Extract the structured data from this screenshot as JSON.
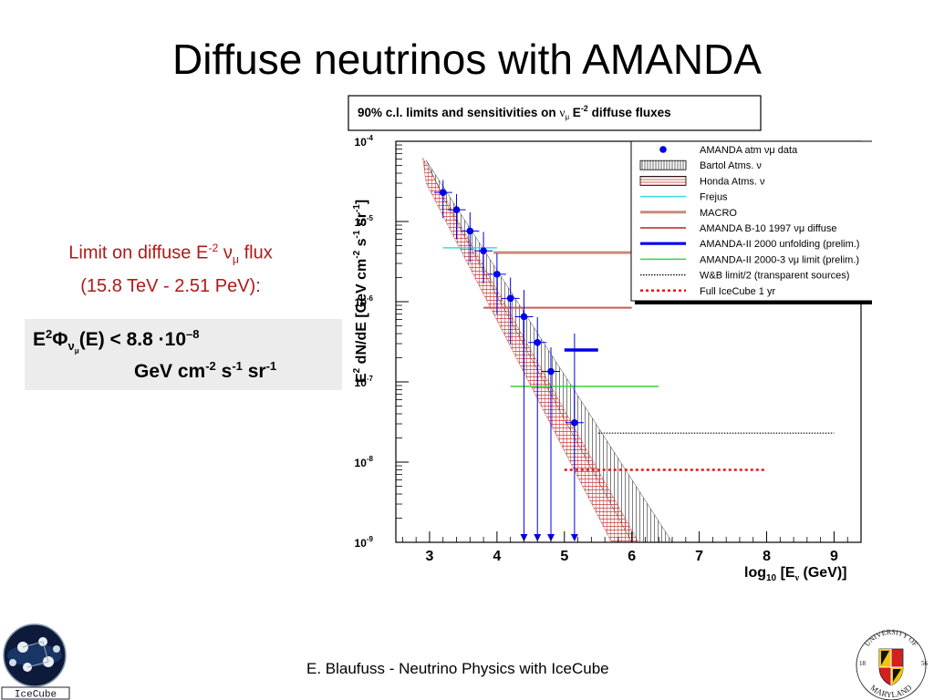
{
  "slide": {
    "title": "Diffuse neutrinos with AMANDA",
    "limit_line1_prefix": "Limit on diffuse E",
    "limit_line1_exp": "-2",
    "limit_line1_nu": "ν",
    "limit_line1_mu": "μ",
    "limit_line1_suffix": " flux",
    "limit_line2": "(15.8 TeV - 2.51 PeV):",
    "formula": {
      "e": "E",
      "e_exp": "2",
      "phi": "Φ",
      "nu": "ν",
      "mu": "μ",
      "arg": "(E) <  8.8",
      "dot": "·",
      "ten": "10",
      "ten_exp": "–8",
      "unit_gev": "GeV cm",
      "unit_cm_exp": "-2",
      "unit_s": " s",
      "unit_s_exp": "-1",
      "unit_sr": " sr",
      "unit_sr_exp": "-1"
    },
    "footer": "E. Blaufuss - Neutrino Physics with IceCube",
    "logos": {
      "icecube_text": "IceCube",
      "umd_top": "UNIVERSITY OF",
      "umd_bottom": "MARYLAND",
      "umd_18": "18",
      "umd_56": "56"
    }
  },
  "chart_data": {
    "type": "line",
    "title_prefix": "90% c.l. limits and sensitivities on ",
    "title_nu": "ν",
    "title_mu": "μ",
    "title_e": " E",
    "title_exp": "-2",
    "title_suffix": " diffuse fluxes",
    "ylabel_prefix": "E",
    "ylabel_exp2": "2",
    "ylabel_body": " dN/dE [GeV cm",
    "ylabel_exp_cm": "-2",
    "ylabel_s": " s",
    "ylabel_exp_s": "-1",
    "ylabel_sr": " sr",
    "ylabel_exp_sr": "-1",
    "ylabel_close": "]",
    "xlabel_log": "log",
    "xlabel_sub": "10",
    "xlabel_body": " [E",
    "xlabel_nu": "ν",
    "xlabel_close": " (GeV)]",
    "xlim": [
      2.5,
      9.4
    ],
    "ylim_log10": [
      -9,
      -4
    ],
    "y_scale": "log",
    "x_ticks": [
      3,
      4,
      5,
      6,
      7,
      8,
      9
    ],
    "y_ticks": [
      {
        "base": "10",
        "exp": "-4",
        "value_log10": -4
      },
      {
        "base": "10",
        "exp": "-5",
        "value_log10": -5
      },
      {
        "base": "10",
        "exp": "-6",
        "value_log10": -6
      },
      {
        "base": "10",
        "exp": "-7",
        "value_log10": -7
      },
      {
        "base": "10",
        "exp": "-8",
        "value_log10": -8
      },
      {
        "base": "10",
        "exp": "-9",
        "value_log10": -9
      }
    ],
    "legend_position": "top-right",
    "series": [
      {
        "name": "AMANDA atm νμ data",
        "kind": "points",
        "color": "#0000e6",
        "points": [
          {
            "x": 3.2,
            "y": 2.3e-05,
            "ylo": 1.1e-05,
            "yhi": 3.3e-05
          },
          {
            "x": 3.4,
            "y": 1.4e-05,
            "ylo": 6e-06,
            "yhi": 2.2e-05
          },
          {
            "x": 3.6,
            "y": 7.6e-06,
            "ylo": 3.1e-06,
            "yhi": 1.3e-05
          },
          {
            "x": 3.8,
            "y": 4.3e-06,
            "ylo": 1.7e-06,
            "yhi": 7.4e-06
          },
          {
            "x": 4.0,
            "y": 2.2e-06,
            "ylo": 7e-07,
            "yhi": 4e-06
          },
          {
            "x": 4.2,
            "y": 1.1e-06,
            "ylo": 3e-07,
            "yhi": 2e-06
          },
          {
            "x": 4.4,
            "y": 6.5e-07,
            "ylo": 1e-09,
            "yhi": 1.4e-06
          },
          {
            "x": 4.6,
            "y": 3.1e-07,
            "ylo": 1e-09,
            "yhi": 6.4e-07
          },
          {
            "x": 4.8,
            "y": 1.35e-07,
            "ylo": 1e-09,
            "yhi": 2.7e-07
          },
          {
            "x": 5.15,
            "y": 3.1e-08,
            "ylo": 1e-09,
            "yhi": 4e-07
          }
        ]
      },
      {
        "name": "Bartol Atms. ν",
        "kind": "band",
        "color": "#333333",
        "upper": [
          [
            2.95,
            5.8e-05
          ],
          [
            6.6,
            1e-09
          ]
        ],
        "lower": [
          [
            3.2,
            2e-05
          ],
          [
            6.0,
            1e-09
          ]
        ]
      },
      {
        "name": "Honda Atms. ν",
        "kind": "band",
        "color": "#c83c3c",
        "upper": [
          [
            2.9,
            6.2e-05
          ],
          [
            6.1,
            1e-09
          ]
        ],
        "lower": [
          [
            2.95,
            3e-05
          ],
          [
            5.7,
            1e-09
          ]
        ]
      },
      {
        "name": "Frejus",
        "kind": "hline",
        "color": "#33dddd",
        "x": [
          3.2,
          4.0
        ],
        "y": 4.7e-06
      },
      {
        "name": "MACRO",
        "kind": "hline",
        "color": "#c88c78",
        "x": [
          3.95,
          6.0
        ],
        "y": 4.1e-06
      },
      {
        "name": "AMANDA B-10 1997 νμ diffuse",
        "kind": "hline",
        "color": "#c85a5a",
        "x": [
          3.8,
          6.0
        ],
        "y": 8.4e-07
      },
      {
        "name": "AMANDA-II 2000 unfolding (prelim.)",
        "kind": "hline",
        "color": "#0000e6",
        "x": [
          5.0,
          5.5
        ],
        "y": 2.5e-07
      },
      {
        "name": "AMANDA-II 2000-3 νμ limit (prelim.)",
        "kind": "hline",
        "color": "#3cd23c",
        "x": [
          4.2,
          6.4
        ],
        "y": 8.8e-08
      },
      {
        "name": "W&B limit/2 (transparent sources)",
        "kind": "hline",
        "color": "#000000",
        "x": [
          5.5,
          9.0
        ],
        "y": 2.3e-08
      },
      {
        "name": "Full IceCube 1 yr",
        "kind": "hline",
        "color": "#e61414",
        "x": [
          5.0,
          8.0
        ],
        "y": 8e-09
      }
    ]
  }
}
